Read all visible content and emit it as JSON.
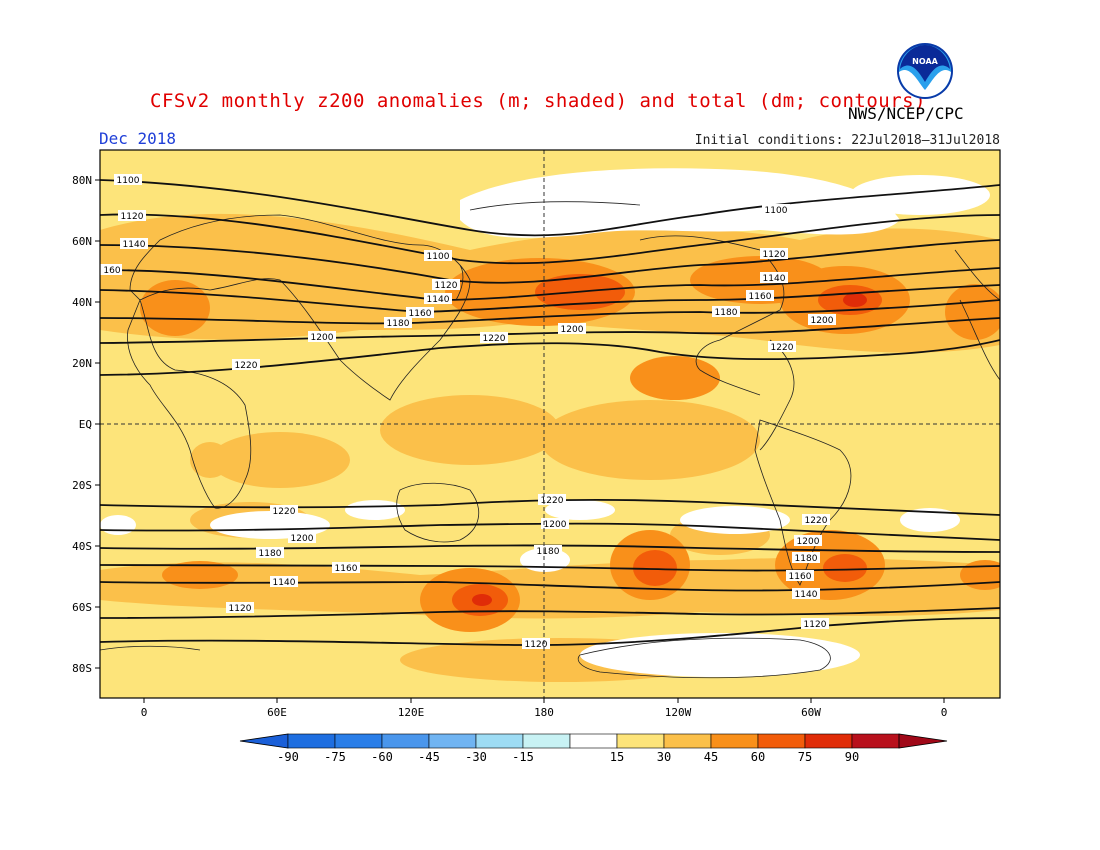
{
  "header": {
    "title": "CFSv2 monthly z200 anomalies (m; shaded) and total (dm; contours)",
    "agency": "NWS/NCEP/CPC",
    "month": "Dec 2018",
    "initial_conditions": "Initial conditions: 22Jul2018–31Jul2018",
    "logo_text": "NOAA"
  },
  "axes": {
    "lat_labels": [
      "80N",
      "60N",
      "40N",
      "20N",
      "EQ",
      "20S",
      "40S",
      "60S",
      "80S"
    ],
    "lon_labels": [
      "0",
      "60E",
      "120E",
      "180",
      "120W",
      "60W",
      "0"
    ]
  },
  "colorbar": {
    "ticks": [
      "-90",
      "-75",
      "-60",
      "-45",
      "-30",
      "-15",
      "15",
      "30",
      "45",
      "60",
      "75",
      "90"
    ],
    "colors": [
      "#1e6ee0",
      "#2a7ee8",
      "#4a96ec",
      "#70b4f2",
      "#9edcf4",
      "#c8f2f4",
      "#ffffff",
      "#fde47a",
      "#fbc04a",
      "#f9901a",
      "#f25c0a",
      "#e02c08",
      "#b8101c"
    ],
    "under_color": "#1a5fd8",
    "over_color": "#a00818"
  },
  "map": {
    "base_color": "#fde47a",
    "contour_labels": [
      {
        "text": "1100",
        "lat": 80
      },
      {
        "text": "1120",
        "lat": 69
      },
      {
        "text": "1140",
        "lat": 60
      },
      {
        "text": "160",
        "lat": 50
      },
      {
        "text": "1100",
        "lat": 55
      },
      {
        "text": "1120",
        "lat": 45
      },
      {
        "text": "1140",
        "lat": 41
      },
      {
        "text": "1160",
        "lat": 37
      },
      {
        "text": "1180",
        "lat": 33
      },
      {
        "text": "1200",
        "lat": 29
      },
      {
        "text": "1220",
        "lat": 19
      },
      {
        "text": "1220",
        "lat": 28
      },
      {
        "text": "1200",
        "lat": 31
      },
      {
        "text": "1180",
        "lat": 40
      },
      {
        "text": "1160",
        "lat": 42
      },
      {
        "text": "1140",
        "lat": 47
      },
      {
        "text": "1120",
        "lat": 55
      },
      {
        "text": "1100",
        "lat": 71
      },
      {
        "text": "1200",
        "lat": 34
      },
      {
        "text": "1220",
        "lat": 25
      },
      {
        "text": "1220",
        "lat": -25
      },
      {
        "text": "1200",
        "lat": -38
      },
      {
        "text": "1180",
        "lat": -42
      },
      {
        "text": "1160",
        "lat": -47
      },
      {
        "text": "1140",
        "lat": -52
      },
      {
        "text": "1120",
        "lat": -61
      },
      {
        "text": "1220",
        "lat": -25
      },
      {
        "text": "1200",
        "lat": -33
      },
      {
        "text": "1180",
        "lat": -42
      },
      {
        "text": "1120",
        "lat": -73
      },
      {
        "text": "1220",
        "lat": -31
      },
      {
        "text": "1200",
        "lat": -38
      },
      {
        "text": "1180",
        "lat": -44
      },
      {
        "text": "1160",
        "lat": -50
      },
      {
        "text": "1140",
        "lat": -55
      },
      {
        "text": "1120",
        "lat": -65
      }
    ]
  }
}
